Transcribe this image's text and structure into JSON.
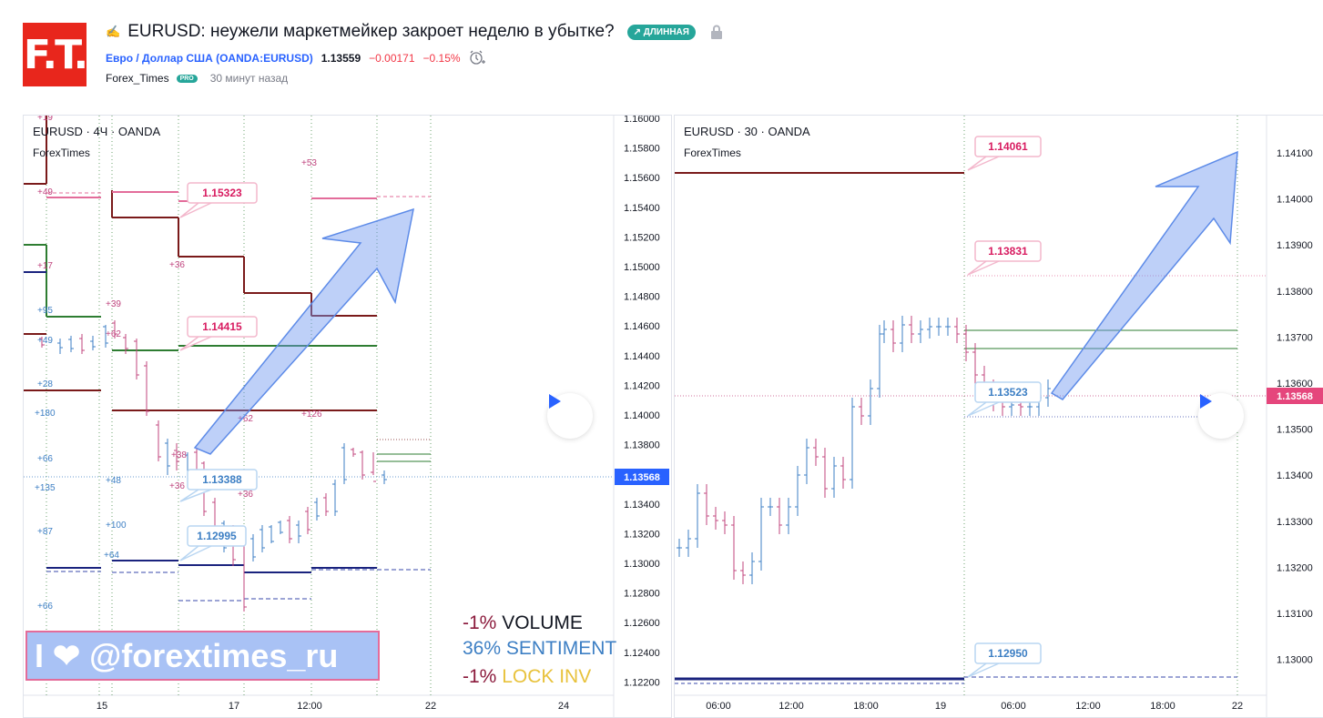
{
  "header": {
    "logo_text": "F.T.",
    "title": "EURUSD: неужели маркетмейкер закроет неделю в убытке?",
    "badge": "↗ ДЛИННАЯ",
    "symbol_link": "Евро / Доллар США (OANDA:EURUSD)",
    "price": "1.13559",
    "change": "−0.00171",
    "change_pct": "−0.15%",
    "author": "Forex_Times",
    "pro_badge": "PRO",
    "time_ago": "30 минут назад"
  },
  "left_chart": {
    "label": "EURUSD · 4Ч · OANDA",
    "indicator": "ForexTimes",
    "price_ticks": [
      "1.16000",
      "1.15800",
      "1.15600",
      "1.15400",
      "1.15200",
      "1.15000",
      "1.14800",
      "1.14600",
      "1.14400",
      "1.14200",
      "1.14000",
      "1.13800",
      "1.13600",
      "1.13400",
      "1.13200",
      "1.13000",
      "1.12800",
      "1.12600",
      "1.12400",
      "1.12200"
    ],
    "current_price": "1.13568",
    "time_labels": [
      "15",
      "17",
      "12:00",
      "22",
      "24"
    ],
    "callouts": [
      "1.15323",
      "1.14415",
      "1.13388",
      "1.12995"
    ],
    "volume_marks": [
      "+19",
      "+49",
      "+53",
      "+17",
      "+36",
      "+39",
      "+95",
      "+62",
      "+49",
      "+28",
      "+62",
      "+126",
      "+180",
      "+38",
      "+66",
      "+36",
      "+48",
      "+135",
      "+36",
      "+100",
      "+87",
      "+64",
      "+66"
    ],
    "stats": [
      {
        "pct": "-1%",
        "name": "VOLUME",
        "pct_color": "#8b1a3c",
        "name_color": "#131722"
      },
      {
        "pct": "36%",
        "name": "SENTIMENT",
        "pct_color": "#3d7fc4",
        "name_color": "#3d7fc4"
      },
      {
        "pct": "-1%",
        "name": "LOCK INV",
        "pct_color": "#8b1a3c",
        "name_color": "#e8c23c"
      }
    ],
    "banner": "I ❤ @forextimes_ru"
  },
  "right_chart": {
    "label": "EURUSD · 30 · OANDA",
    "indicator": "ForexTimes",
    "price_ticks": [
      "1.14100",
      "1.14000",
      "1.13900",
      "1.13800",
      "1.13700",
      "1.13600",
      "1.13500",
      "1.13400",
      "1.13300",
      "1.13200",
      "1.13100",
      "1.13000"
    ],
    "current_price": "1.13568",
    "time_labels": [
      "06:00",
      "12:00",
      "18:00",
      "19",
      "06:00",
      "12:00",
      "18:00",
      "22"
    ],
    "callouts": [
      "1.14061",
      "1.13831",
      "1.13523",
      "1.12950"
    ]
  },
  "colors": {
    "up": "#3d7fc4",
    "down": "#c2467d",
    "maroon": "#7a1a1a",
    "green": "#2e7d32",
    "navy": "#1a237e",
    "pink": "#e36c9a",
    "current": "#2962ff"
  },
  "icons": [
    "pencil-icon",
    "lock-icon",
    "alarm-icon",
    "play-icon",
    "heart-icon",
    "arrow-up-icon"
  ]
}
